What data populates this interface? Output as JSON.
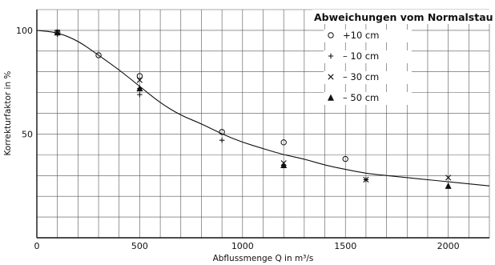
{
  "chart_data": {
    "type": "scatter",
    "xlabel": "Abflussmenge Q in m³/s",
    "ylabel": "Korrekturfaktor in %",
    "xlim": [
      0,
      2200
    ],
    "ylim": [
      0,
      110
    ],
    "x_ticks": [
      0,
      500,
      1000,
      1500,
      2000
    ],
    "y_ticks": [
      50,
      100
    ],
    "grid": true,
    "legend": {
      "title": "Abweichungen vom Normalstau",
      "placement": "top-right",
      "items": [
        {
          "label": "+10 cm",
          "marker": "circle"
        },
        {
          "label": "– 10 cm",
          "marker": "plus"
        },
        {
          "label": "– 30 cm",
          "marker": "x"
        },
        {
          "label": "– 50 cm",
          "marker": "triangle"
        }
      ]
    },
    "series": [
      {
        "marker": "circle",
        "x": [
          100,
          300,
          500,
          900,
          1200,
          1500
        ],
        "y": [
          99,
          88,
          78,
          51,
          46,
          38
        ]
      },
      {
        "marker": "plus",
        "x": [
          100,
          500,
          500,
          900,
          1200,
          1600
        ],
        "y": [
          98,
          72,
          69,
          47,
          35,
          28
        ]
      },
      {
        "marker": "x",
        "x": [
          100,
          500,
          1200,
          1600,
          2000
        ],
        "y": [
          99,
          76,
          36,
          28,
          29
        ]
      },
      {
        "marker": "triangle",
        "x": [
          100,
          500,
          1200,
          2000
        ],
        "y": [
          99,
          72,
          35,
          25
        ]
      }
    ],
    "fit_curve": {
      "x": [
        0,
        100,
        200,
        300,
        400,
        500,
        600,
        700,
        800,
        900,
        1000,
        1100,
        1200,
        1300,
        1400,
        1500,
        1600,
        1700,
        1800,
        1900,
        2000,
        2100,
        2200
      ],
      "y": [
        100,
        99,
        95,
        88,
        81,
        73,
        65,
        59,
        55,
        50,
        46,
        43,
        40,
        38,
        35,
        33,
        31,
        30,
        29,
        28,
        27,
        26,
        25
      ]
    }
  }
}
